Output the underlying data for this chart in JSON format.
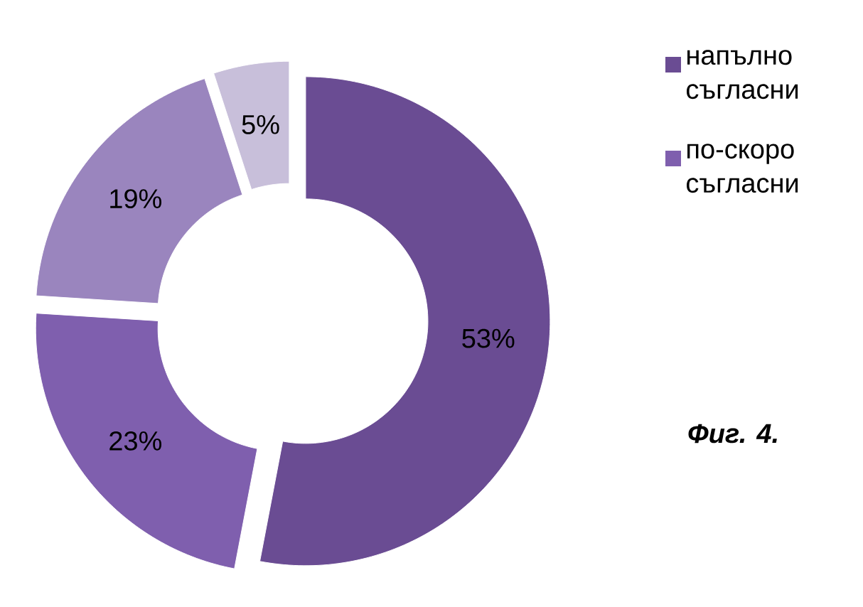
{
  "chart_data": {
    "type": "donut",
    "categories": [
      "напълно съгласни",
      "по-скоро съгласни",
      null,
      null
    ],
    "values": [
      53,
      23,
      19,
      5
    ],
    "colors": [
      "#6a4c93",
      "#7f5fae",
      "#9a85be",
      "#c8bfda"
    ],
    "value_labels": [
      "53%",
      "23%",
      "19%",
      "5%"
    ],
    "legend": "top right",
    "annotations": [
      "*Фиг. 4.*"
    ]
  }
}
